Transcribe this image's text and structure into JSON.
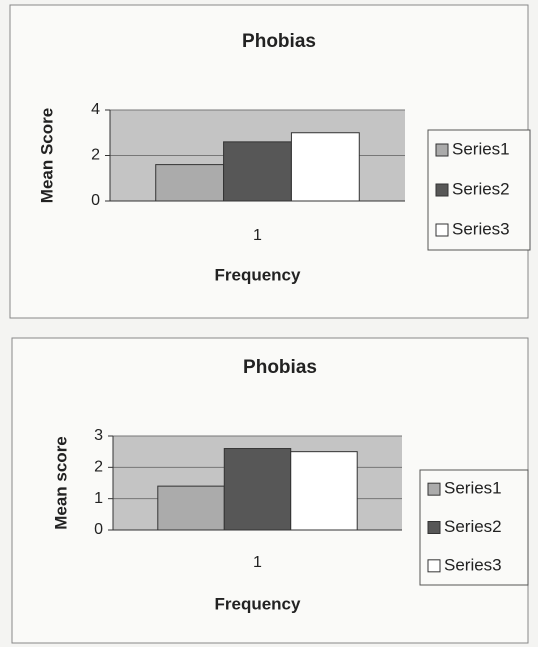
{
  "chart_data": [
    {
      "type": "bar",
      "title": "Phobias",
      "y_label": "Mean Score",
      "x_label": "Frequency",
      "categories": [
        "1"
      ],
      "series": [
        {
          "name": "Series1",
          "color": "#ababab",
          "values": [
            1.6
          ]
        },
        {
          "name": "Series2",
          "color": "#575757",
          "values": [
            2.6
          ]
        },
        {
          "name": "Series3",
          "color": "#ffffff",
          "values": [
            3.0
          ]
        }
      ],
      "ylim": [
        0,
        4
      ],
      "yticks": [
        0,
        2,
        4
      ],
      "grid": true,
      "legend": "right"
    },
    {
      "type": "bar",
      "title": "Phobias",
      "y_label": "Mean score",
      "x_label": "Frequency",
      "categories": [
        "1"
      ],
      "series": [
        {
          "name": "Series1",
          "color": "#ababab",
          "values": [
            1.4
          ]
        },
        {
          "name": "Series2",
          "color": "#575757",
          "values": [
            2.6
          ]
        },
        {
          "name": "Series3",
          "color": "#ffffff",
          "values": [
            2.5
          ]
        }
      ],
      "ylim": [
        0,
        3
      ],
      "yticks": [
        0,
        1,
        2,
        3
      ],
      "grid": true,
      "legend": "right"
    }
  ]
}
